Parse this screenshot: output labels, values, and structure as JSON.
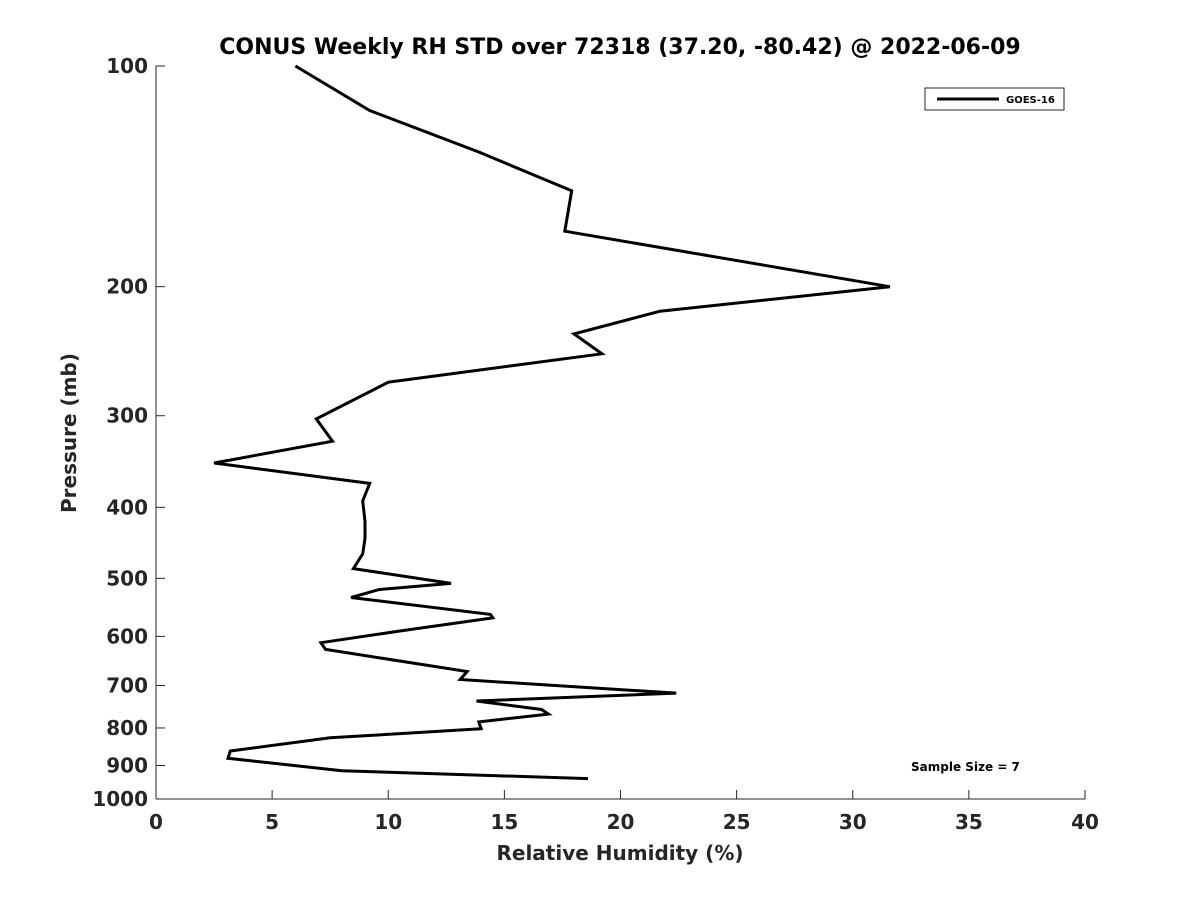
{
  "chart_data": {
    "type": "line",
    "title": "CONUS Weekly RH STD over 72318 (37.20, -80.42) @ 2022-06-09",
    "xlabel": "Relative Humidity (%)",
    "ylabel": "Pressure (mb)",
    "xlim": [
      0,
      40
    ],
    "ylim": [
      100,
      1000
    ],
    "yscale": "log",
    "y_reversed": true,
    "xticks": [
      0,
      5,
      10,
      15,
      20,
      25,
      30,
      35,
      40
    ],
    "xtick_labels": [
      "0",
      "5",
      "10",
      "15",
      "20",
      "25",
      "30",
      "35",
      "40"
    ],
    "yticks": [
      100,
      200,
      300,
      400,
      500,
      600,
      700,
      800,
      900,
      1000
    ],
    "ytick_labels": [
      "100",
      "200",
      "300",
      "400",
      "500",
      "600",
      "700",
      "800",
      "900",
      "1000"
    ],
    "grid": false,
    "legend": {
      "position": "top-right",
      "entries": [
        "GOES-16"
      ]
    },
    "annotation": "Sample Size = 7",
    "series": [
      {
        "name": "GOES-16",
        "color": "#000000",
        "x": [
          6.0,
          9.2,
          13.9,
          17.9,
          17.6,
          31.6,
          21.7,
          18.0,
          19.2,
          10.0,
          6.9,
          7.6,
          2.5,
          9.2,
          8.9,
          9.0,
          9.0,
          8.9,
          8.5,
          12.7,
          9.6,
          8.4,
          14.4,
          14.5,
          10.5,
          7.1,
          7.3,
          13.4,
          13.1,
          22.4,
          13.8,
          16.6,
          16.9,
          13.9,
          14.0,
          7.5,
          3.2,
          3.1,
          8.0,
          18.6
        ],
        "y": [
          100,
          115,
          131,
          148,
          168,
          200,
          216,
          232,
          247,
          270,
          303,
          325,
          348,
          371,
          392,
          418,
          441,
          463,
          485,
          508,
          518,
          531,
          560,
          566,
          590,
          612,
          625,
          670,
          687,
          717,
          735,
          755,
          766,
          785,
          802,
          825,
          860,
          880,
          915,
          938
        ]
      }
    ]
  }
}
